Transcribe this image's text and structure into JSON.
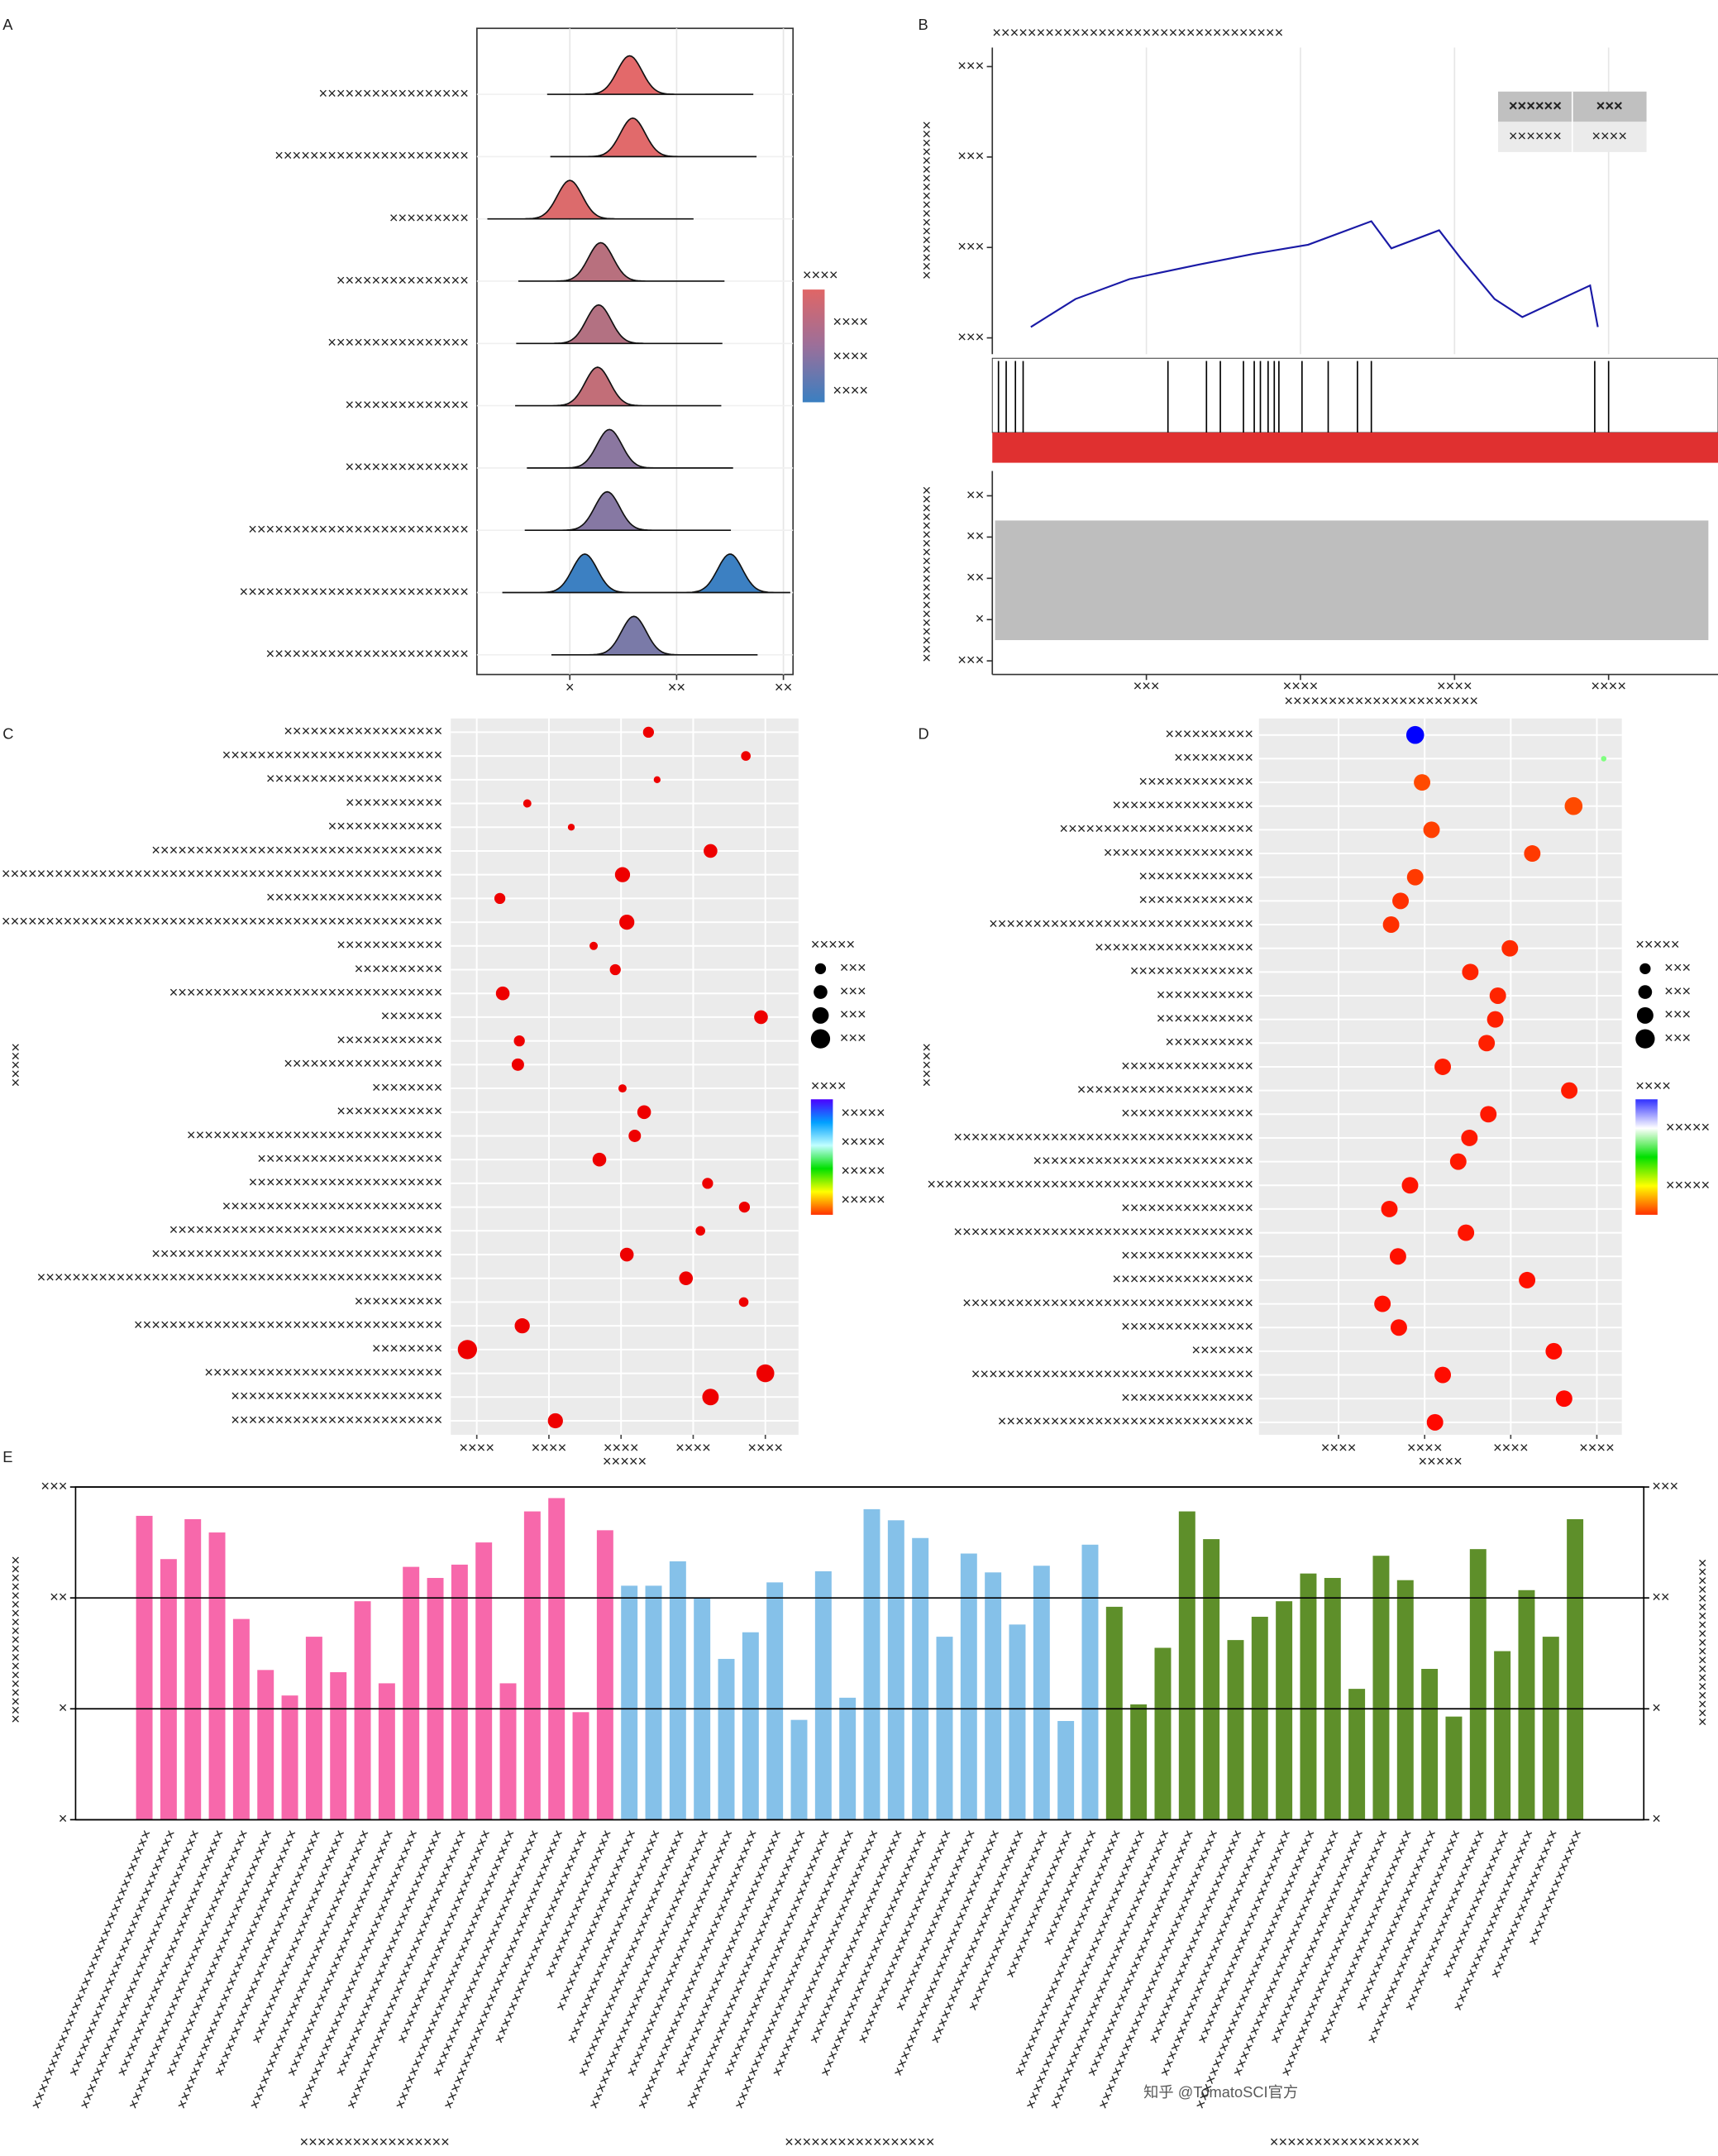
{
  "chart_data": [
    {
      "type": "ridge",
      "label": "A",
      "categories": [
        "×××××××××××××××××",
        "××××××××××××××××××××××",
        "×××××××××",
        "×××××××××××××××",
        "××××××××××××××××",
        "××××××××××××××",
        "××××××××××××××",
        "×××××××××××××××××××××××××",
        "××××××××××××××××××××××××××",
        "×××××××××××××××××××××××"
      ],
      "values": [
        [
          0.56
        ],
        [
          0.59
        ],
        [
          0
        ],
        [
          0.29
        ],
        [
          0.27
        ],
        [
          0.26
        ],
        [
          0.37
        ],
        [
          0.35
        ],
        [
          0.14,
          1.5
        ],
        [
          0.6
        ]
      ],
      "colors": [
        "#e3696a",
        "#e16a6b",
        "#dc6b6c",
        "#b8707e",
        "#b37182",
        "#c26e78",
        "#8b77a0",
        "#8678a3",
        "#3c80c2",
        "#7a7aa8"
      ],
      "xlim": [
        -0.87,
        2.09
      ],
      "xticks": [
        {
          "value": 0,
          "label": "×"
        },
        {
          "value": 1,
          "label": "××"
        },
        {
          "value": 2,
          "label": "××"
        }
      ],
      "legend_title": "××××",
      "legend_labels": [
        "××××",
        "××××",
        "××××"
      ],
      "colormap": [
        "#e06666",
        "#9b6f9a",
        "#3a7fc1"
      ]
    },
    {
      "type": "gsea",
      "label": "B",
      "title": "×××××××××××××××××××××××××××××××××",
      "title_color": "#b22222",
      "ylabel": "××××××××××××××××××",
      "x": [
        0.25,
        0.54,
        0.89,
        1.34,
        1.7,
        2.05,
        2.46,
        2.59,
        2.9,
        3.04,
        3.26,
        3.44,
        3.88,
        3.93
      ],
      "values": [
        0.12,
        0.43,
        0.65,
        0.81,
        0.93,
        1.03,
        1.29,
        0.99,
        1.19,
        0.88,
        0.43,
        0.23,
        0.58,
        0.12
      ],
      "color": "#1a1aa6",
      "hits": [
        0.04,
        0.09,
        0.15,
        0.2,
        1.14,
        1.39,
        1.48,
        1.63,
        1.7,
        1.74,
        1.79,
        1.83,
        1.86,
        2.01,
        2.18,
        2.37,
        2.46,
        3.91,
        4.0
      ],
      "hit_bar_color": "#e03030",
      "xlim": [
        0,
        4.71
      ],
      "xticks": [
        {
          "value": 1,
          "label": "×××"
        },
        {
          "value": 2,
          "label": "××××"
        },
        {
          "value": 3,
          "label": "××××"
        },
        {
          "value": 4,
          "label": "××××"
        }
      ],
      "xlabel": "××××××××××××××××××××××",
      "ylim": [
        -0.18,
        3.21
      ],
      "yticks": [
        {
          "value": 0,
          "label": "×××"
        },
        {
          "value": 1,
          "label": "×××"
        },
        {
          "value": 2,
          "label": "×××"
        },
        {
          "value": 3,
          "label": "×××"
        }
      ],
      "rank_ylabel": "××××××××××××××××××××",
      "rank_ylim": [
        -0.33,
        4.6
      ],
      "rank_yticks": [
        {
          "value": 4,
          "label": "××"
        },
        {
          "value": 3,
          "label": "××"
        },
        {
          "value": 2,
          "label": "××"
        },
        {
          "value": 1,
          "label": "×"
        },
        {
          "value": 0,
          "label": "×××"
        }
      ],
      "table": {
        "header": [
          "××××××",
          "×××"
        ],
        "row": [
          "××××××",
          "××××"
        ]
      }
    },
    {
      "type": "dot",
      "label": "C",
      "categories": [
        "××××××××××××××××××",
        "×××××××××××××××××××××××××",
        "××××××××××××××××××××",
        "×××××××××××",
        "×××××××××××××",
        "×××××××××××××××××××××××××××××××××",
        "××××××××××××××××××××××××××××××××××××××××××××××××××",
        "××××××××××××××××××××",
        "××××××××××××××××××××××××××××××××××××××××××××××××××",
        "××××××××××××",
        "××××××××××",
        "×××××××××××××××××××××××××××××××",
        "×××××××",
        "××××××××××××",
        "××××××××××××××××××",
        "××××××××",
        "××××××××××××",
        "×××××××××××××××××××××××××××××",
        "×××××××××××××××××××××",
        "××××××××××××××××××××××",
        "×××××××××××××××××××××××××",
        "×××××××××××××××××××××××××××××××",
        "×××××××××××××××××××××××××××××××××",
        "××××××××××××××××××××××××××××××××××××××××××××××",
        "××××××××××",
        "×××××××××××××××××××××××××××××××××××",
        "××××××××",
        "×××××××××××××××××××××××××××",
        "××××××××××××××××××××××××",
        "××××××××××××××××××××××××"
      ],
      "values": [
        3.38,
        4.73,
        3.5,
        1.7,
        2.31,
        4.24,
        3.02,
        1.32,
        3.08,
        2.62,
        2.92,
        1.36,
        4.94,
        1.59,
        1.57,
        3.02,
        3.32,
        3.19,
        2.7,
        4.2,
        4.71,
        4.1,
        3.08,
        3.9,
        4.7,
        1.63,
        0.87,
        5.0,
        4.24,
        2.09
      ],
      "sizes": [
        4,
        3.5,
        2.5,
        3,
        2.5,
        5,
        5.5,
        4,
        5.5,
        3,
        4,
        5,
        5,
        4,
        4.5,
        3,
        5,
        4.5,
        5,
        4,
        4,
        3.5,
        5,
        5,
        3.5,
        5.5,
        7,
        6.5,
        6,
        5.5
      ],
      "color": "#ee0000",
      "xlim": [
        0.64,
        5.46
      ],
      "xticks": [
        {
          "value": 1,
          "label": "××××"
        },
        {
          "value": 2,
          "label": "××××"
        },
        {
          "value": 3,
          "label": "××××"
        },
        {
          "value": 4,
          "label": "××××"
        },
        {
          "value": 5,
          "label": "××××"
        }
      ],
      "xlabel": "×××××",
      "ylabel": "×××××",
      "size_title": "×××××",
      "size_legend": [
        {
          "value": 4,
          "label": "×××"
        },
        {
          "value": 5,
          "label": "×××"
        },
        {
          "value": 6,
          "label": "×××"
        },
        {
          "value": 7,
          "label": "×××"
        }
      ],
      "color_title": "××××",
      "color_labels": [
        "×××××",
        "×××××",
        "×××××",
        "×××××"
      ],
      "colormap": [
        "#4b00ff",
        "#00a0ff",
        "#c0ffff",
        "#00e000",
        "#ffff00",
        "#ff3000"
      ]
    },
    {
      "type": "dot",
      "label": "D",
      "categories": [
        "××××××××××",
        "×××××××××",
        "×××××××××××××",
        "××××××××××××××××",
        "××××××××××××××××××××××",
        "×××××××××××××××××",
        "×××××××××××××",
        "×××××××××××××",
        "××××××××××××××××××××××××××××××",
        "××××××××××××××××××",
        "××××××××××××××",
        "×××××××××××",
        "×××××××××××",
        "××××××××××",
        "×××××××××××××××",
        "××××××××××××××××××××",
        "×××××××××××××××",
        "××××××××××××××××××××××××××××××××××",
        "×××××××××××××××××××××××××",
        "×××××××××××××××××××××××××××××××××××××",
        "×××××××××××××××",
        "××××××××××××××××××××××××××××××××××",
        "×××××××××××××××",
        "××××××××××××××××",
        "×××××××××××××××××××××××××××××××××",
        "×××××××××××××××",
        "×××××××",
        "××××××××××××××××××××××××××××××××",
        "×××××××××××××××",
        "×××××××××××××××××××××××××××××"
      ],
      "values": [
        1.89,
        4.08,
        1.97,
        3.73,
        2.08,
        3.25,
        1.89,
        1.72,
        1.61,
        2.99,
        2.53,
        2.85,
        2.82,
        2.72,
        2.21,
        3.68,
        2.74,
        2.52,
        2.39,
        1.83,
        1.59,
        2.48,
        1.69,
        3.19,
        1.51,
        1.7,
        3.5,
        2.21,
        3.62,
        2.12
      ],
      "sizes": [
        6.5,
        2,
        6,
        6.5,
        6,
        6,
        6,
        6,
        6,
        6,
        6,
        6,
        6,
        6,
        6,
        6,
        6,
        6,
        6,
        6,
        6,
        6,
        6,
        6,
        6,
        6,
        6,
        6,
        6,
        6
      ],
      "colors": [
        "#0000ff",
        "#80ff80",
        "#ff4a00",
        "#ff4a00",
        "#ff4000",
        "#ff3a00",
        "#ff3a00",
        "#ff3000",
        "#ff3000",
        "#ff2a00",
        "#ff2400",
        "#ff2400",
        "#ff2000",
        "#ff2000",
        "#ff1c00",
        "#ff1c00",
        "#ff1800",
        "#ff1800",
        "#ff1800",
        "#ff1400",
        "#ff1400",
        "#ff1400",
        "#ff1000",
        "#ff1000",
        "#ff1000",
        "#ff1000",
        "#ff0c00",
        "#ff0c00",
        "#ff0800",
        "#ff0800"
      ],
      "xlim": [
        0.075,
        4.29
      ],
      "xticks": [
        {
          "value": 1,
          "label": "××××"
        },
        {
          "value": 2,
          "label": "××××"
        },
        {
          "value": 3,
          "label": "××××"
        },
        {
          "value": 4,
          "label": "××××"
        }
      ],
      "xlabel": "×××××",
      "ylabel": "×××××",
      "size_title": "×××××",
      "size_legend": [
        {
          "value": 4,
          "label": "×××"
        },
        {
          "value": 5,
          "label": "×××"
        },
        {
          "value": 6,
          "label": "×××"
        },
        {
          "value": 7,
          "label": "×××"
        }
      ],
      "color_title": "××××",
      "color_labels": [
        "×××××",
        "×××××"
      ],
      "colormap": [
        "#3030ff",
        "#ffffff",
        "#00e000",
        "#ffff00",
        "#ff3000"
      ]
    },
    {
      "type": "bar",
      "label": "E",
      "ylabel": "×××××××××××××××××××",
      "y2label": "×××××××××××××××××××",
      "ylim": [
        0,
        3
      ],
      "yticks": [
        {
          "value": 0,
          "label": "×"
        },
        {
          "value": 1,
          "label": "×"
        },
        {
          "value": 2,
          "label": "××"
        },
        {
          "value": 3,
          "label": "×××"
        }
      ],
      "y2lim": [
        0,
        3
      ],
      "y2ticks": [
        {
          "value": 0,
          "label": "×"
        },
        {
          "value": 1,
          "label": "×"
        },
        {
          "value": 2,
          "label": "××"
        },
        {
          "value": 3,
          "label": "×××"
        }
      ],
      "series": [
        {
          "name": "×××××××××××××××××",
          "color": "#f768ab",
          "categories": [
            "××××××××××××××××××××××××××××××××××",
            "××××××××××××××××××××××××××××××",
            "××××××××××××××××××××××××××××××××××",
            "××××××××××××××××××××××××××××××",
            "××××××××××××××××××××××××××××××××××",
            "××××××××××××××××××××××××××××××",
            "××××××××××××××××××××××××××××××××××",
            "××××××××××××××××××××××××××××××",
            "××××××××××××××××××××××××××",
            "××××××××××××××××××××××××××××××××××",
            "××××××××××××××××××××××××××××××",
            "××××××××××××××××××××××××××××××××××",
            "××××××××××××××××××××××××××××××",
            "××××××××××××××××××××××××××××××××××",
            "××××××××××××××××××××××××××",
            "××××××××××××××××××××××××××××××××××",
            "××××××××××××××××××××××××××××××",
            "××××××××××××××××××××××××××××××××××",
            "××××××××××××××××××××××××××",
            "××××××××××××××××××"
          ],
          "values": [
            2.74,
            2.35,
            2.71,
            2.59,
            1.81,
            1.35,
            1.12,
            1.65,
            1.33,
            1.97,
            1.23,
            2.28,
            2.18,
            2.3,
            2.5,
            1.23,
            2.78,
            2.9,
            0.97,
            2.61
          ]
        },
        {
          "name": "×××××××××××××××××",
          "color": "#85c1e9",
          "categories": [
            "××××××××××××××××××××××",
            "××××××××××××××××××××××××××",
            "××××××××××××××××××××××××××××××",
            "××××××××××××××××××××××××××××××××××",
            "××××××××××××××××××××××××××××××",
            "××××××××××××××××××××××××××××××××××",
            "××××××××××××××××××××××××××××××",
            "××××××××××××××××××××××××××××××××××",
            "××××××××××××××××××××××××××××××",
            "××××××××××××××××××××××××××××××××××",
            "××××××××××××××××××××××××××××××",
            "××××××××××××××××××××××××××",
            "××××××××××××××××××××××××××××××",
            "××××××××××××××××××××××××××",
            "××××××××××××××××××××××",
            "××××××××××××××××××××××××××××××",
            "××××××××××××××××××××××××××",
            "××××××××××××××××××××××",
            "××××××××××××××××××",
            "××××××××××××××"
          ],
          "values": [
            2.11,
            2.11,
            2.33,
            2.0,
            1.45,
            1.69,
            2.14,
            0.9,
            2.24,
            1.1,
            2.8,
            2.7,
            2.54,
            1.65,
            2.4,
            2.23,
            1.76,
            2.29,
            0.89,
            2.48
          ]
        },
        {
          "name": "×××××××××××××××××",
          "color": "#5e8f2a",
          "categories": [
            "××××××××××××××××××××××××××××××",
            "××××××××××××××××××××××××××××××××××",
            "××××××××××××××××××××××××××××××××××",
            "××××××××××××××××××××××××××××××",
            "××××××××××××××××××××××××××××××××××",
            "××××××××××××××××××××××××××",
            "××××××××××××××××××××××××××××××",
            "××××××××××××××××××××××××××",
            "××××××××××××××××××××××××××××××××××",
            "××××××××××××××××××××××××××××××",
            "××××××××××××××××××××××××××",
            "××××××××××××××××××××××××××××××",
            "××××××××××××××××××××××××××",
            "××××××××××××××××××××××",
            "××××××××××××××××××××××××××",
            "××××××××××××××××××××××",
            "××××××××××××××××××",
            "××××××××××××××××××××××",
            "××××××××××××××××××",
            "××××××××××××××"
          ],
          "values": [
            1.92,
            1.04,
            1.55,
            2.78,
            2.53,
            1.62,
            1.83,
            1.97,
            2.22,
            2.18,
            1.18,
            2.38,
            2.16,
            1.36,
            0.93,
            2.44,
            1.52,
            2.07,
            1.65,
            2.71
          ]
        }
      ]
    }
  ],
  "watermark": "知乎 @TomatoSCI官方"
}
